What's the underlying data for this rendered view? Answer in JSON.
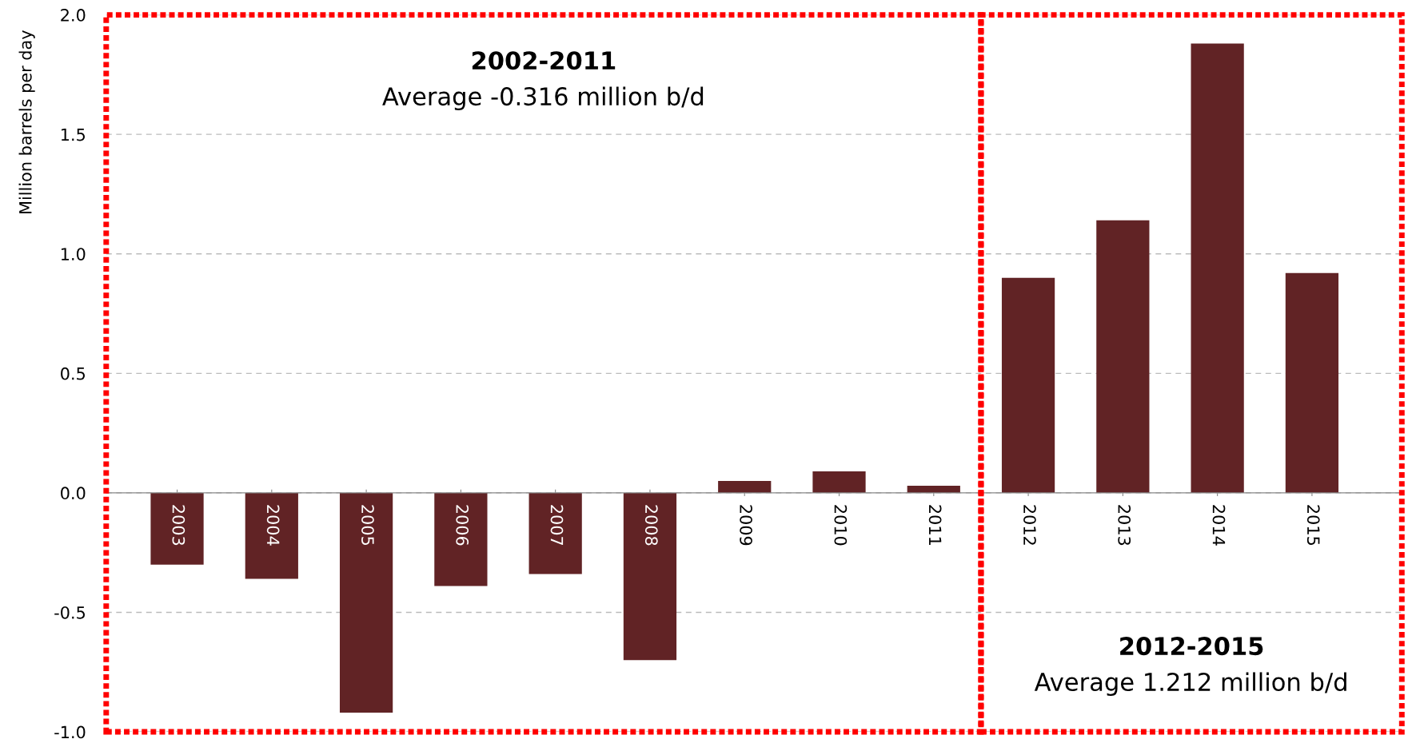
{
  "chart_data": {
    "type": "bar",
    "ylabel": "Million barrels per day",
    "categories": [
      "2003",
      "2004",
      "2005",
      "2006",
      "2007",
      "2008",
      "2009",
      "2010",
      "2011",
      "2012",
      "2013",
      "2014",
      "2015"
    ],
    "values": [
      -0.3,
      -0.36,
      -0.92,
      -0.39,
      -0.34,
      -0.7,
      0.05,
      0.09,
      0.03,
      0.9,
      1.14,
      1.88,
      0.92
    ],
    "color": "#612325",
    "ylim": [
      -1.0,
      2.0
    ],
    "yticks": [
      {
        "value": -1.0,
        "label": "-1.0"
      },
      {
        "value": -0.5,
        "label": "-0.5"
      },
      {
        "value": 0.0,
        "label": "0.0"
      },
      {
        "value": 0.5,
        "label": "0.5"
      },
      {
        "value": 1.0,
        "label": "1.0"
      },
      {
        "value": 1.5,
        "label": "1.5"
      },
      {
        "value": 2.0,
        "label": "2.0"
      }
    ],
    "grid": "y",
    "annotations": [
      "2002-2011",
      "Average -0.316 million b/d",
      "2012-2015",
      "Average 1.212 million b/d"
    ]
  }
}
